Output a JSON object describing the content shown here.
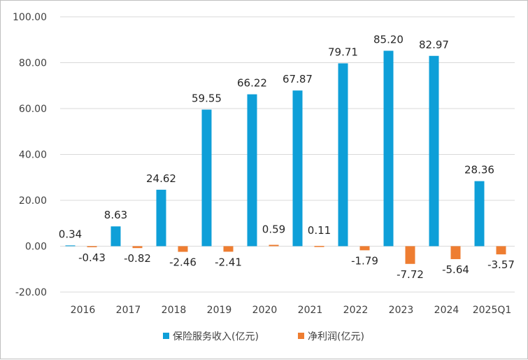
{
  "chart_data": {
    "type": "bar",
    "title": "",
    "xlabel": "",
    "ylabel": "",
    "categories": [
      "2016",
      "2017",
      "2018",
      "2019",
      "2020",
      "2021",
      "2022",
      "2023",
      "2024",
      "2025Q1"
    ],
    "series": [
      {
        "name": "保险服务收入(亿元)",
        "color": "#0e9fd8",
        "values": [
          0.34,
          8.63,
          24.62,
          59.55,
          66.22,
          67.87,
          79.71,
          85.2,
          82.97,
          28.36
        ],
        "labels": [
          "0.34",
          "8.63",
          "24.62",
          "59.55",
          "66.22",
          "67.87",
          "79.71",
          "85.20",
          "82.97",
          "28.36"
        ]
      },
      {
        "name": "净利润(亿元)",
        "color": "#ee7d31",
        "values": [
          -0.43,
          -0.82,
          -2.46,
          -2.41,
          0.59,
          0.11,
          -1.79,
          -7.72,
          -5.64,
          -3.57
        ],
        "labels": [
          "-0.43",
          "-0.82",
          "-2.46",
          "-2.41",
          "0.59",
          "0.11",
          "-1.79",
          "-7.72",
          "-5.64",
          "-3.57"
        ]
      }
    ],
    "ylim": [
      -20,
      100
    ],
    "yticks": [
      100,
      80,
      60,
      40,
      20,
      0,
      -20
    ],
    "ytick_labels": [
      "100.00",
      "80.00",
      "60.00",
      "40.00",
      "20.00",
      "0.00",
      "-20.00"
    ],
    "grid": true,
    "legend_position": "bottom"
  }
}
